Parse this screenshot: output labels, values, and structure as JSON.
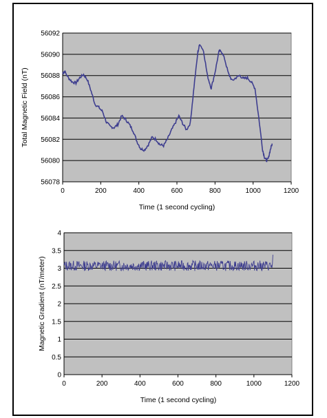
{
  "chart_data": [
    {
      "type": "line",
      "xlabel": "Time (1 second cycling)",
      "ylabel": "Total Magnetic Field (nT)",
      "xlim": [
        0,
        1200
      ],
      "ylim": [
        56078,
        56092
      ],
      "x_ticks": [
        0,
        200,
        400,
        600,
        800,
        1000,
        1200
      ],
      "y_ticks": [
        56078,
        56080,
        56082,
        56084,
        56086,
        56088,
        56090,
        56092
      ],
      "grid": "horizontal",
      "colors": {
        "plot_bg": "#c0c0c0",
        "line": "#3d3d8f"
      },
      "series": [
        {
          "x": [
            0,
            10,
            30,
            50,
            70,
            90,
            110,
            130,
            150,
            170,
            190,
            210,
            230,
            250,
            270,
            290,
            310,
            330,
            350,
            370,
            390,
            410,
            430,
            450,
            470,
            490,
            510,
            530,
            550,
            570,
            590,
            610,
            630,
            650,
            670,
            690,
            710,
            720,
            740,
            760,
            780,
            800,
            820,
            830,
            850,
            870,
            890,
            910,
            930,
            950,
            970,
            990,
            1010,
            1030,
            1050,
            1060,
            1070,
            1080,
            1090,
            1100
          ],
          "values": [
            56088.2,
            56088.4,
            56087.8,
            56087.4,
            56087.3,
            56087.8,
            56088.1,
            56087.6,
            56086.5,
            56085.3,
            56085.0,
            56084.6,
            56083.6,
            56083.2,
            56083.1,
            56083.4,
            56084.2,
            56083.9,
            56083.4,
            56082.8,
            56081.8,
            56081.1,
            56081.0,
            56081.5,
            56082.2,
            56082.0,
            56081.5,
            56081.4,
            56082.0,
            56082.8,
            56083.5,
            56084.2,
            56083.5,
            56082.9,
            56083.5,
            56087.0,
            56090.2,
            56091.0,
            56090.3,
            56088.0,
            56086.8,
            56088.3,
            56090.2,
            56090.4,
            56089.6,
            56088.2,
            56087.5,
            56087.8,
            56088.0,
            56087.7,
            56087.8,
            56087.4,
            56086.8,
            56084.0,
            56081.0,
            56080.3,
            56080.0,
            56080.2,
            56081.0,
            56081.6
          ]
        }
      ]
    },
    {
      "type": "line",
      "xlabel": "Time (1 second cycling)",
      "ylabel": "Magnetic Gradient (nT/meter)",
      "xlim": [
        0,
        1200
      ],
      "ylim": [
        0,
        4
      ],
      "x_ticks": [
        0,
        200,
        400,
        600,
        800,
        1000,
        1200
      ],
      "y_ticks": [
        0,
        0.5,
        1,
        1.5,
        2,
        2.5,
        3,
        3.5,
        4
      ],
      "grid": "horizontal",
      "colors": {
        "plot_bg": "#c0c0c0",
        "line": "#3d3d8f"
      },
      "series": [
        {
          "x_start": 0,
          "x_end": 1100,
          "mean": 3.07,
          "noise_range": [
            2.93,
            3.22
          ],
          "end_spike": 3.38
        }
      ]
    }
  ]
}
